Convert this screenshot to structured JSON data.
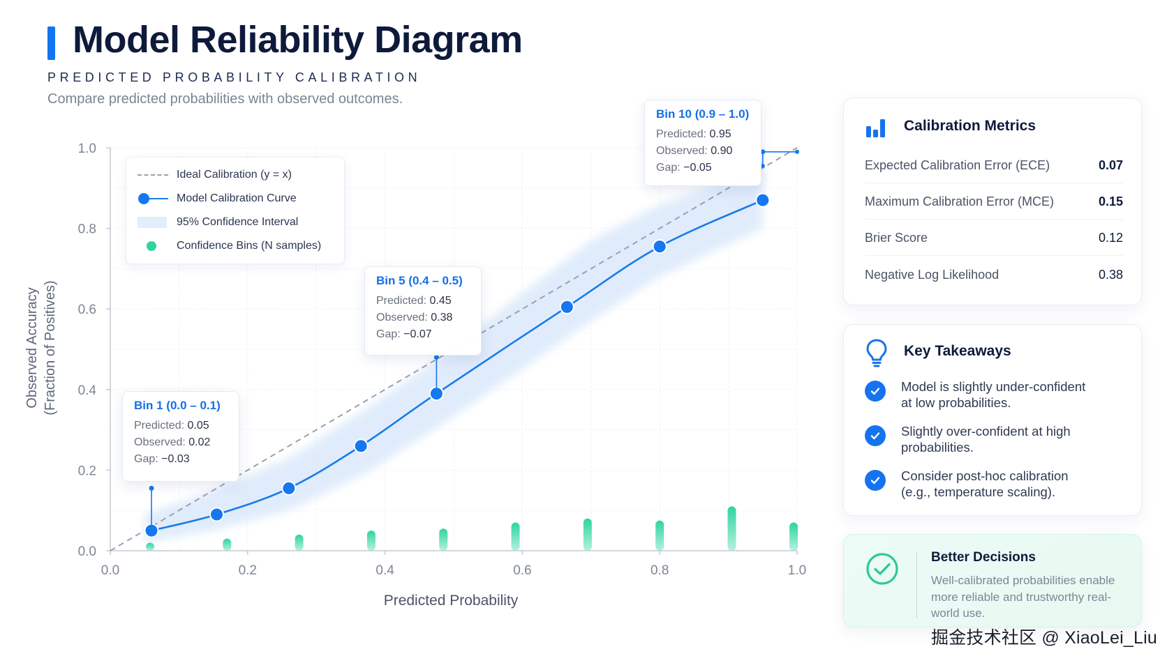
{
  "header": {
    "title": "Model Reliability Diagram",
    "subtitle": "PREDICTED PROBABILITY CALIBRATION",
    "description": "Compare predicted probabilities with observed outcomes."
  },
  "legend": {
    "items": [
      {
        "label": "Ideal Calibration (y = x)",
        "icon": "dashed-line"
      },
      {
        "label": "Model Calibration Curve",
        "icon": "dot-line"
      },
      {
        "label": "95% Confidence Interval",
        "icon": "band"
      },
      {
        "label": "Confidence Bins (N samples)",
        "icon": "green-dot"
      }
    ]
  },
  "chart_data": {
    "type": "line",
    "title": "",
    "xlabel": "Predicted Probability",
    "ylabel_line1": "Observed Accuracy",
    "ylabel_line2": "(Fraction of Positives)",
    "xlim": [
      0,
      1
    ],
    "ylim": [
      0,
      1
    ],
    "x_ticks": [
      "0.0",
      "0.2",
      "0.4",
      "0.6",
      "0.8",
      "1.0"
    ],
    "y_ticks": [
      "0.0",
      "0.2",
      "0.4",
      "0.6",
      "0.8",
      "1.0"
    ],
    "grid": true,
    "legend_position": "top-left",
    "ideal_line": {
      "name": "Ideal Calibration (y = x)",
      "x": [
        0,
        1
      ],
      "y": [
        0,
        1
      ]
    },
    "series": [
      {
        "name": "Model Calibration Curve",
        "x": [
          0.06,
          0.155,
          0.26,
          0.365,
          0.475,
          0.665,
          0.8,
          0.95
        ],
        "y": [
          0.05,
          0.09,
          0.155,
          0.26,
          0.39,
          0.605,
          0.755,
          0.87
        ]
      }
    ],
    "confidence_band": {
      "name": "95% Confidence Interval",
      "x": [
        0.05,
        0.15,
        0.26,
        0.37,
        0.48,
        0.6,
        0.7,
        0.8,
        0.95
      ],
      "lower": [
        0.02,
        0.05,
        0.1,
        0.19,
        0.31,
        0.45,
        0.57,
        0.68,
        0.8
      ],
      "upper": [
        0.09,
        0.15,
        0.23,
        0.35,
        0.48,
        0.64,
        0.77,
        0.86,
        0.95
      ]
    },
    "bins": {
      "name": "Confidence Bins (N samples)",
      "x": [
        0.058,
        0.17,
        0.275,
        0.38,
        0.485,
        0.59,
        0.695,
        0.8,
        0.905,
        0.995
      ],
      "heights": [
        0.02,
        0.03,
        0.04,
        0.05,
        0.055,
        0.07,
        0.08,
        0.075,
        0.11,
        0.07
      ]
    },
    "annotations": [
      {
        "title": "Bin 1 (0.0 – 0.1)",
        "predicted": "0.05",
        "observed": "0.02",
        "gap": "−0.03",
        "x": 0.06,
        "y_from": 0.05,
        "y_to": 0.155
      },
      {
        "title": "Bin 5 (0.4 – 0.5)",
        "predicted": "0.45",
        "observed": "0.38",
        "gap": "−0.07",
        "x": 0.475,
        "y_from": 0.39,
        "y_to": 0.48
      },
      {
        "title": "Bin 10 (0.9 – 1.0)",
        "predicted": "0.95",
        "observed": "0.90",
        "gap": "−0.05",
        "x": 0.95,
        "y_from": 0.955,
        "y_to": 0.99
      }
    ],
    "labels": {
      "predicted": "Predicted:",
      "observed": "Observed:",
      "gap": "Gap:"
    },
    "colors": {
      "curve": "#1a7be8",
      "point": "#1677f0",
      "band": "#dbe9fb",
      "ideal": "#9aa1ad",
      "bins": "#2ed4a0"
    }
  },
  "metrics": {
    "title": "Calibration Metrics",
    "icon": "bar-chart-icon",
    "rows": [
      {
        "label": "Expected Calibration Error (ECE)",
        "value": "0.07"
      },
      {
        "label": "Maximum Calibration Error (MCE)",
        "value": "0.15"
      },
      {
        "label": "Brier Score",
        "value": "0.12"
      },
      {
        "label": "Negative Log Likelihood",
        "value": "0.38"
      }
    ]
  },
  "takeaways": {
    "title": "Key Takeaways",
    "icon": "lightbulb-icon",
    "items": [
      {
        "line1": "Model is slightly under-confident",
        "line2": "at low probabilities."
      },
      {
        "line1": "Slightly over-confident at high",
        "line2": "probabilities."
      },
      {
        "line1": "Consider post-hoc calibration",
        "line2": "(e.g., temperature scaling)."
      }
    ]
  },
  "better": {
    "title": "Better Decisions",
    "icon": "check-circle-icon",
    "text": "Well-calibrated probabilities enable more reliable and trustworthy real-world use."
  },
  "watermark": "掘金技术社区 @ XiaoLei_Liu"
}
